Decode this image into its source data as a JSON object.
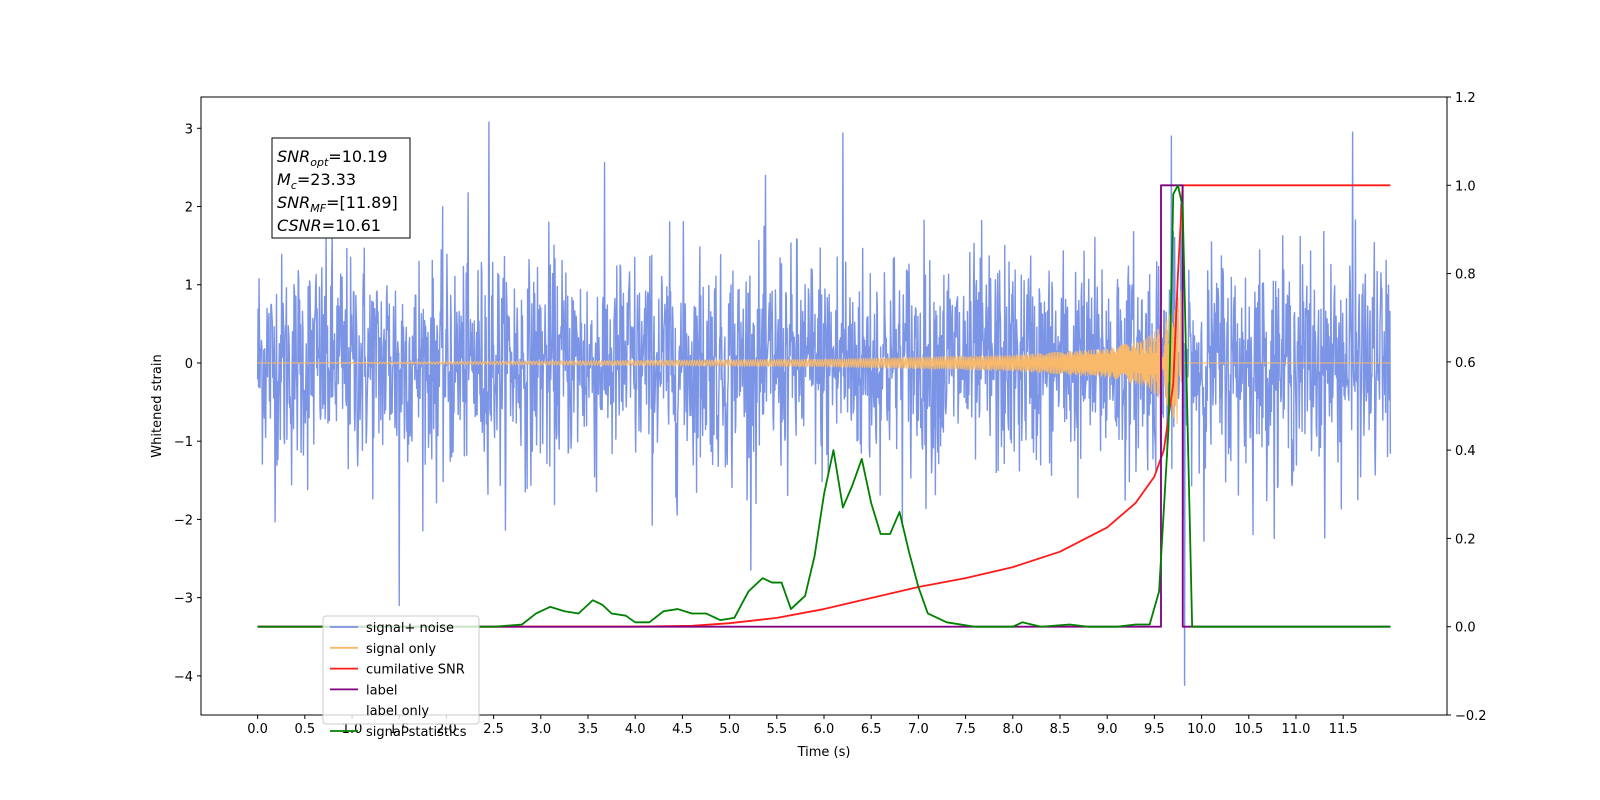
{
  "chart_data": {
    "type": "line",
    "xlabel": "Time (s)",
    "ylabel": "Whitened strain",
    "ylabel_right": "",
    "xlim": [
      -0.6,
      12.6
    ],
    "ylim": [
      -4.5,
      3.4
    ],
    "ylim_right": [
      -0.2,
      1.2
    ],
    "x_ticks": [
      "0.0",
      "0.5",
      "1.0",
      "1.5",
      "2.0",
      "2.5",
      "3.0",
      "3.5",
      "4.0",
      "4.5",
      "5.0",
      "5.5",
      "6.0",
      "6.5",
      "7.0",
      "7.5",
      "8.0",
      "8.5",
      "9.0",
      "9.5",
      "10.0",
      "10.5",
      "11.0",
      "11.5"
    ],
    "y_ticks": [
      "3",
      "2",
      "1",
      "0",
      "−1",
      "−2",
      "−3",
      "−4"
    ],
    "y_ticks_right": [
      "1.2",
      "1.0",
      "0.8",
      "0.6",
      "0.4",
      "0.2",
      "0.0",
      "−0.2"
    ],
    "grid": false,
    "legend_placement": "lower-left",
    "annotation": {
      "lines": [
        {
          "sym": "SNR",
          "sub": "opt",
          "val": "=10.19"
        },
        {
          "sym": "M",
          "sub": "c",
          "val": "=23.33"
        },
        {
          "sym": "SNR",
          "sub": "MF",
          "val": "=[11.89]"
        },
        {
          "sym": "CSNR",
          "sub": "",
          "val": "=10.61"
        }
      ]
    },
    "series": [
      {
        "name": "signal+ noise",
        "axis": "left",
        "color": "#7b94e6",
        "kind": "noise",
        "x_range": [
          0.0,
          12.0
        ],
        "envelope_typical": 1.5,
        "envelope_peak": 3.08,
        "min_outlier": [
          9.82,
          -4.12
        ],
        "notable_points": [
          [
            1.5,
            -3.1
          ],
          [
            2.45,
            3.08
          ],
          [
            6.2,
            2.94
          ],
          [
            9.68,
            2.9
          ],
          [
            9.82,
            -4.12
          ],
          [
            11.6,
            2.95
          ]
        ]
      },
      {
        "name": "signal only",
        "axis": "left",
        "color": "#f8b96a",
        "kind": "chirp",
        "x_range": [
          0.0,
          12.0
        ],
        "merger_time": 9.8,
        "amplitude_points": [
          [
            0.0,
            0.0
          ],
          [
            6.0,
            0.05
          ],
          [
            8.0,
            0.1
          ],
          [
            9.0,
            0.18
          ],
          [
            9.4,
            0.3
          ],
          [
            9.6,
            0.5
          ],
          [
            9.72,
            0.75
          ],
          [
            9.78,
            0.95
          ],
          [
            9.8,
            0.0
          ],
          [
            12.0,
            0.0
          ]
        ]
      },
      {
        "name": "cumilative SNR",
        "axis": "right",
        "color": "#ff1a1a",
        "x": [
          0.0,
          4.0,
          4.6,
          5.0,
          5.5,
          6.0,
          6.5,
          7.0,
          7.5,
          8.0,
          8.5,
          9.0,
          9.3,
          9.5,
          9.6,
          9.7,
          9.75,
          9.8,
          12.0
        ],
        "y": [
          0.0,
          0.0,
          0.002,
          0.008,
          0.02,
          0.04,
          0.065,
          0.09,
          0.11,
          0.135,
          0.17,
          0.225,
          0.28,
          0.34,
          0.4,
          0.55,
          0.8,
          1.0,
          1.0
        ]
      },
      {
        "name": "label",
        "axis": "right",
        "color": "#800080",
        "x": [
          0.0,
          9.57,
          9.57,
          9.8,
          9.8,
          12.0
        ],
        "y": [
          0.0,
          0.0,
          1.0,
          1.0,
          0.0,
          0.0
        ]
      },
      {
        "name": "label only",
        "axis": "right",
        "color": "#bfbfbf",
        "hidden": true
      },
      {
        "name": "signal statistics",
        "axis": "right",
        "color": "#008000",
        "x": [
          0.0,
          2.5,
          2.8,
          2.95,
          3.1,
          3.25,
          3.4,
          3.55,
          3.65,
          3.75,
          3.9,
          4.0,
          4.15,
          4.3,
          4.45,
          4.6,
          4.75,
          4.9,
          5.05,
          5.2,
          5.35,
          5.45,
          5.55,
          5.65,
          5.8,
          5.9,
          6.0,
          6.1,
          6.2,
          6.3,
          6.4,
          6.5,
          6.6,
          6.7,
          6.8,
          6.9,
          7.0,
          7.1,
          7.3,
          7.6,
          8.0,
          8.1,
          8.3,
          8.6,
          8.8,
          9.1,
          9.3,
          9.45,
          9.55,
          9.65,
          9.7,
          9.75,
          9.8,
          9.9,
          12.0
        ],
        "y": [
          0.0,
          0.0,
          0.005,
          0.03,
          0.045,
          0.035,
          0.03,
          0.06,
          0.05,
          0.03,
          0.025,
          0.01,
          0.01,
          0.035,
          0.04,
          0.03,
          0.03,
          0.015,
          0.02,
          0.08,
          0.11,
          0.1,
          0.1,
          0.04,
          0.07,
          0.16,
          0.3,
          0.4,
          0.27,
          0.32,
          0.38,
          0.28,
          0.21,
          0.21,
          0.26,
          0.17,
          0.09,
          0.03,
          0.01,
          0.0,
          0.0,
          0.01,
          0.0,
          0.005,
          0.0,
          0.0,
          0.005,
          0.005,
          0.08,
          0.45,
          0.98,
          1.0,
          0.95,
          0.0,
          0.0
        ]
      }
    ]
  }
}
